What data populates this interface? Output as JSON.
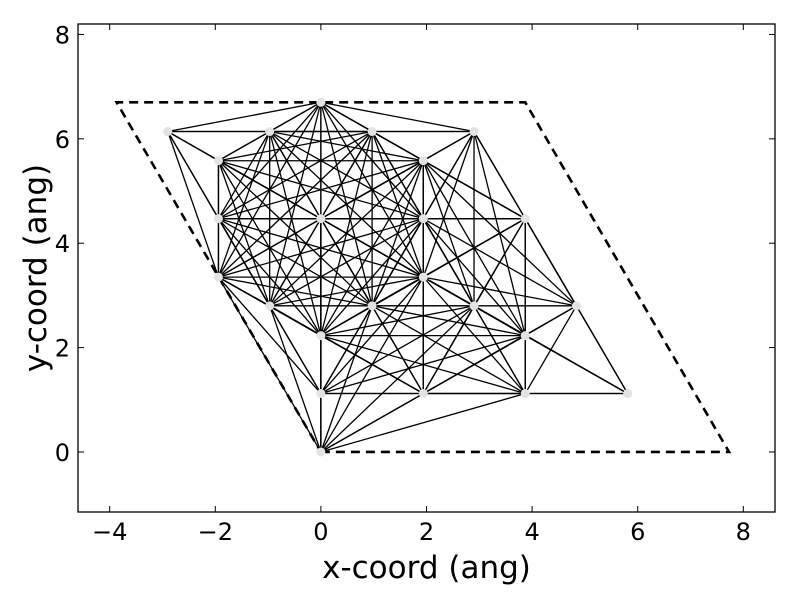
{
  "chart_data": {
    "type": "scatter",
    "title": "",
    "xlabel": "x-coord (ang)",
    "ylabel": "y-coord (ang)",
    "xlim": [
      -4.6,
      8.6
    ],
    "ylim": [
      -1.15,
      8.2
    ],
    "xticks": [
      -4,
      -2,
      0,
      2,
      4,
      6,
      8
    ],
    "xtick_labels": [
      "−4",
      "−2",
      "0",
      "2",
      "4",
      "6",
      "8"
    ],
    "yticks": [
      0,
      2,
      4,
      6,
      8
    ],
    "ytick_labels": [
      "0",
      "2",
      "4",
      "6",
      "8"
    ],
    "grid": false,
    "legend": "none",
    "cell_boundary": {
      "style": "dashed",
      "vertices": [
        [
          0,
          0
        ],
        [
          7.73,
          0
        ],
        [
          3.87,
          6.7
        ],
        [
          -3.87,
          6.7
        ]
      ]
    },
    "series": [
      {
        "points": [
          [
            0,
            0
          ],
          [
            0,
            1.12
          ],
          [
            1.94,
            1.12
          ],
          [
            3.87,
            1.12
          ],
          [
            5.81,
            1.12
          ],
          [
            0,
            2.23
          ],
          [
            3.87,
            2.23
          ],
          [
            -0.97,
            2.8
          ],
          [
            0.97,
            2.8
          ],
          [
            2.9,
            2.8
          ],
          [
            4.84,
            2.8
          ],
          [
            -1.94,
            3.35
          ],
          [
            1.94,
            3.35
          ],
          [
            -1.94,
            4.47
          ],
          [
            0,
            4.47
          ],
          [
            1.94,
            4.47
          ],
          [
            3.87,
            4.47
          ],
          [
            -1.94,
            5.58
          ],
          [
            1.94,
            5.58
          ],
          [
            -2.9,
            6.14
          ],
          [
            -0.97,
            6.14
          ],
          [
            0.97,
            6.14
          ],
          [
            2.9,
            6.14
          ],
          [
            0,
            6.7
          ]
        ]
      }
    ],
    "connections": {
      "style": "solid black",
      "rule": "all pairs within 4.6 ang"
    }
  }
}
